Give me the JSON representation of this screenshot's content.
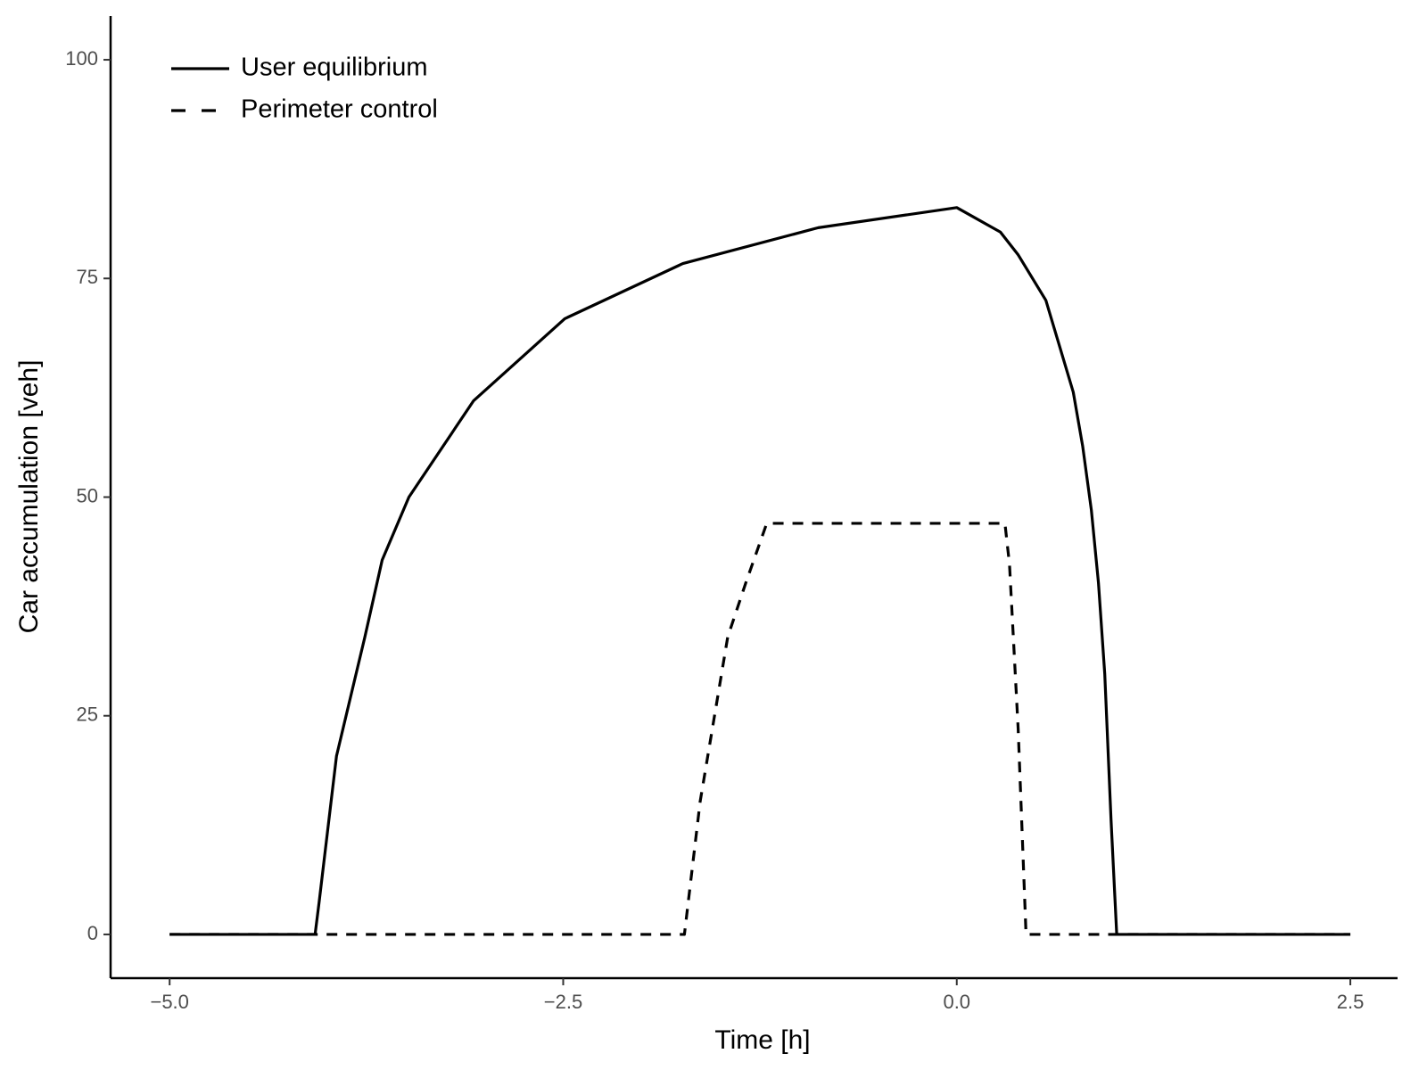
{
  "chart_data": {
    "type": "line",
    "xlabel": "Time [h]",
    "ylabel": "Car accumulation [veh]",
    "xlim": [
      -5.375,
      2.8
    ],
    "ylim": [
      -5,
      105
    ],
    "xticks": [
      {
        "value": -5,
        "label": "−5.0"
      },
      {
        "value": -2.5,
        "label": "−2.5"
      },
      {
        "value": 0,
        "label": "0.0"
      },
      2.5
    ],
    "yticks": [
      0,
      25,
      50,
      75,
      100
    ],
    "grid": false,
    "legend": "top-left",
    "series": [
      {
        "name": "Perimeter control",
        "color": "#000000",
        "linestyle": "dashed",
        "x": [
          -5,
          -1.73,
          -1.63,
          -1.455,
          -1.34,
          -1.207,
          0.306,
          0.335,
          0.39,
          0.44,
          2.5
        ],
        "values": [
          0,
          0,
          15.2,
          34,
          40.2,
          47,
          47,
          42.3,
          23.5,
          0,
          0
        ]
      },
      {
        "name": "User equilibrium",
        "color": "#000000",
        "linestyle": "solid",
        "x": [
          -5,
          -4.076,
          -4.05,
          -3.94,
          -3.76,
          -3.65,
          -3.48,
          -3.07,
          -2.49,
          -1.74,
          -0.88,
          0,
          0.277,
          0.39,
          0.566,
          0.74,
          0.8,
          0.855,
          0.9,
          0.94,
          0.98,
          1.016,
          2.5
        ],
        "values": [
          0,
          0,
          3.75,
          20.4,
          34,
          42.8,
          50,
          61,
          70.4,
          76.7,
          80.8,
          83.1,
          80.3,
          77.7,
          72.5,
          62,
          55.8,
          48.5,
          40.2,
          29.8,
          13.1,
          0,
          0
        ]
      }
    ]
  }
}
